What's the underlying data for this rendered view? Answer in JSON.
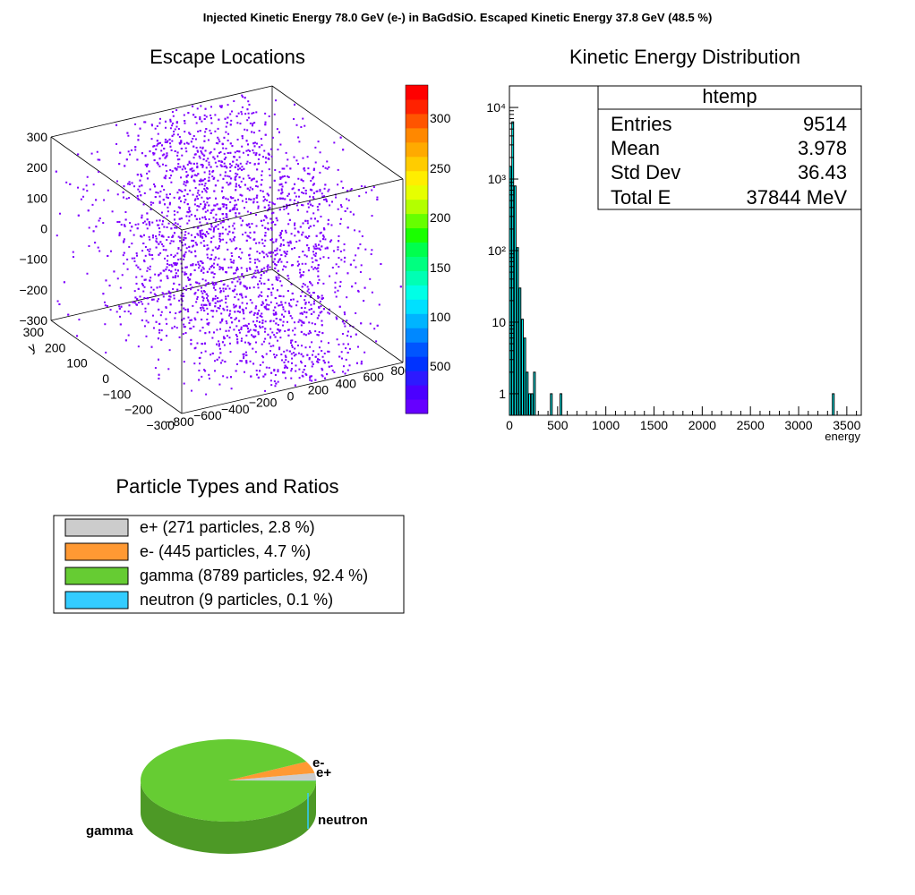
{
  "page_title": "Injected Kinetic Energy 78.0 GeV (e-) in BaGdSiO. Escaped Kinetic Energy 37.8 GeV (48.5 %)",
  "colors": {
    "points": "#7f00ff",
    "hist_fill": "#00ffff",
    "frame": "#000000"
  },
  "chart_data": [
    {
      "type": "scatter",
      "title": "Escape Locations",
      "view": "3d",
      "xlim": [
        -800,
        800
      ],
      "ylim": [
        -300,
        300
      ],
      "zlim": [
        -300,
        300
      ],
      "x_ticks": [
        "−800",
        "−600",
        "−400",
        "−200",
        "0",
        "200",
        "400",
        "600",
        "800"
      ],
      "y_ticks": [
        "−300",
        "−200",
        "−100",
        "0",
        "100",
        "200",
        "300"
      ],
      "z_ticks": [
        "−300",
        "−200",
        "−100",
        "0",
        "100",
        "200",
        "300"
      ],
      "y_axis_label": "y",
      "point_count": 9514,
      "palette": {
        "label_prefix": "",
        "ticks": [
          "500",
          "100",
          "150",
          "200",
          "250",
          "300"
        ],
        "colors": [
          "#6600ff",
          "#4b00ff",
          "#2d1aff",
          "#0033ff",
          "#0055ff",
          "#0088ff",
          "#00b4ff",
          "#00e0ff",
          "#00ffe6",
          "#00ffb4",
          "#00ff80",
          "#00ff4d",
          "#1aff00",
          "#66ff00",
          "#b3ff00",
          "#e6ff00",
          "#ffee00",
          "#ffcc00",
          "#ffaa00",
          "#ff8800",
          "#ff5500",
          "#ff2200",
          "#ff0000"
        ]
      }
    },
    {
      "type": "bar",
      "title": "Kinetic Energy Distribution",
      "xlabel": "energy",
      "log_y": true,
      "xlim": [
        0,
        3650
      ],
      "ylim": [
        0.5,
        20000
      ],
      "x_ticks": [
        "0",
        "500",
        "1000",
        "1500",
        "2000",
        "2500",
        "3000",
        "3500"
      ],
      "y_ticks": [
        "1",
        "10",
        "10²",
        "10³",
        "10⁴"
      ],
      "bin_width": 25,
      "bins": [
        {
          "x": 0,
          "value": 1500
        },
        {
          "x": 25,
          "value": 6300
        },
        {
          "x": 50,
          "value": 800
        },
        {
          "x": 75,
          "value": 110
        },
        {
          "x": 100,
          "value": 30
        },
        {
          "x": 125,
          "value": 11
        },
        {
          "x": 150,
          "value": 6
        },
        {
          "x": 175,
          "value": 2
        },
        {
          "x": 200,
          "value": 1
        },
        {
          "x": 225,
          "value": 1
        },
        {
          "x": 250,
          "value": 2
        },
        {
          "x": 425,
          "value": 1
        },
        {
          "x": 525,
          "value": 1
        },
        {
          "x": 3350,
          "value": 1
        }
      ],
      "stats_box": {
        "name": "htemp",
        "rows": [
          {
            "label": "Entries",
            "value": "9514"
          },
          {
            "label": "Mean",
            "value": "3.978"
          },
          {
            "label": "Std Dev",
            "value": "36.43"
          },
          {
            "label": "Total E",
            "value": "37844 MeV"
          }
        ]
      }
    },
    {
      "type": "pie",
      "title": "Particle Types and Ratios",
      "legend": [
        {
          "label": "e+ (271 particles, 2.8 %)",
          "color": "#cccccc"
        },
        {
          "label": "e- (445 particles, 4.7 %)",
          "color": "#ff9933"
        },
        {
          "label": "gamma (8789 particles, 92.4 %)",
          "color": "#66cc33"
        },
        {
          "label": "neutron (9 particles, 0.1 %)",
          "color": "#33ccff"
        }
      ],
      "slices": [
        {
          "name": "e+",
          "value": 271,
          "percent": 2.8,
          "color": "#cccccc",
          "side": "#999999"
        },
        {
          "name": "e-",
          "value": 445,
          "percent": 4.7,
          "color": "#ff9933",
          "side": "#cc7a29"
        },
        {
          "name": "gamma",
          "value": 8789,
          "percent": 92.4,
          "color": "#66cc33",
          "side": "#4d9926"
        },
        {
          "name": "neutron",
          "value": 9,
          "percent": 0.1,
          "color": "#33ccff",
          "side": "#2699bf"
        }
      ]
    }
  ]
}
